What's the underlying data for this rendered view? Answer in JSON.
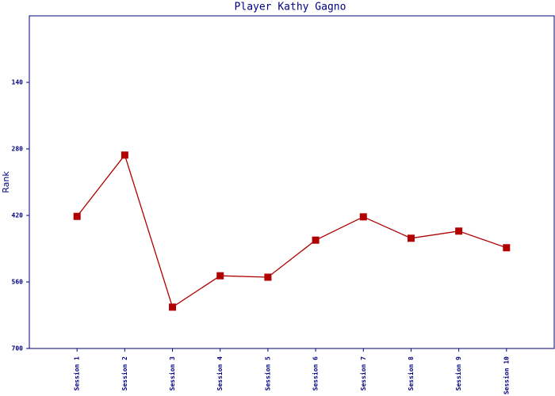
{
  "chart_data": {
    "type": "line",
    "title": "Player Kathy Gagno",
    "y_label": "Rank",
    "categories": [
      "Session 1",
      "Session 2",
      "Session 3",
      "Session 4",
      "Session 5",
      "Session 6",
      "Session 7",
      "Session 8",
      "Session 9",
      "Session 10"
    ],
    "series": [
      {
        "name": "Rank",
        "color": "#b00000",
        "values": [
          422,
          293,
          613,
          547,
          550,
          472,
          423,
          468,
          453,
          488
        ]
      }
    ],
    "ylim": [
      700,
      0
    ],
    "yticks": [
      140,
      280,
      420,
      560,
      700
    ],
    "grid": false
  }
}
